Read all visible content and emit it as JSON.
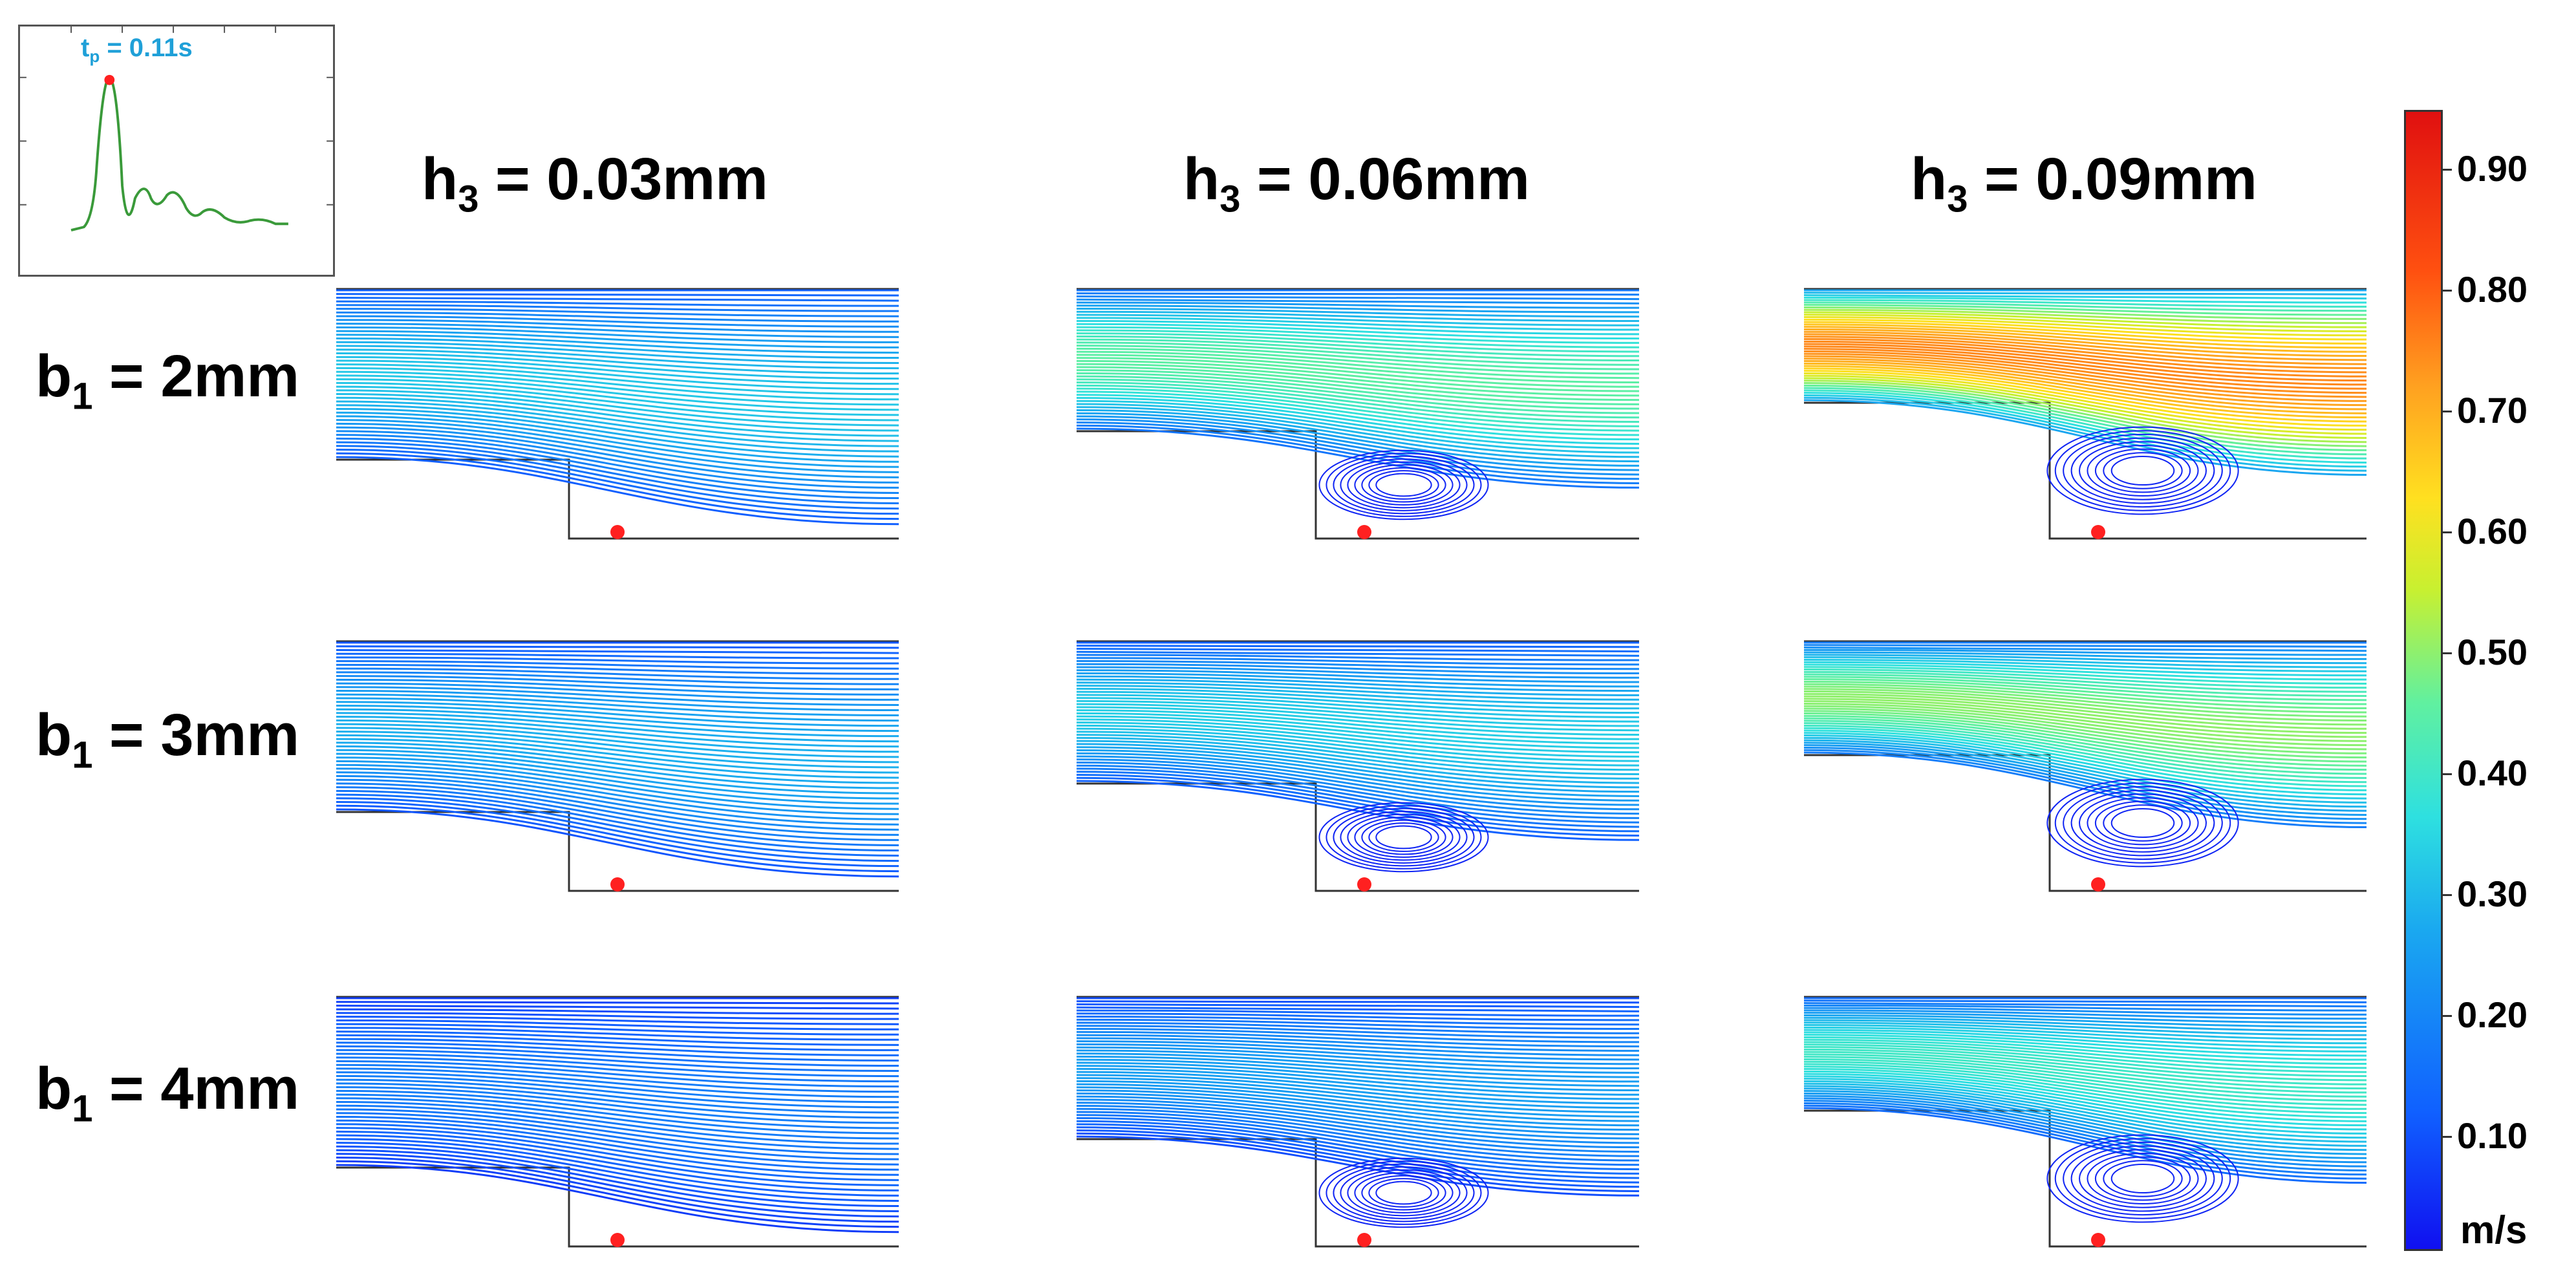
{
  "inset": {
    "peak_label_t": "t",
    "peak_label_sub": "p",
    "peak_label_value": " = 0.11s",
    "curve_color": "#3a9a3a",
    "marker_color": "#ff2020"
  },
  "columns": [
    {
      "label": "h",
      "sub": "3",
      "value": " = 0.03mm"
    },
    {
      "label": "h",
      "sub": "3",
      "value": " = 0.06mm"
    },
    {
      "label": "h",
      "sub": "3",
      "value": " = 0.09mm"
    }
  ],
  "rows": [
    {
      "label": "b",
      "sub": "1",
      "value": " = 2mm"
    },
    {
      "label": "b",
      "sub": "1",
      "value": " = 3mm"
    },
    {
      "label": "b",
      "sub": "1",
      "value": " = 4mm"
    }
  ],
  "colorbar": {
    "ticks": [
      "0.90",
      "0.80",
      "0.70",
      "0.60",
      "0.50",
      "0.40",
      "0.30",
      "0.20",
      "0.10"
    ],
    "unit": "m/s",
    "min": 0.0,
    "max": 0.95
  },
  "panels": [
    {
      "row": 0,
      "col": 0,
      "peak_velocity": 0.32,
      "step_depth": 0.2,
      "vortex": false
    },
    {
      "row": 0,
      "col": 1,
      "peak_velocity": 0.45,
      "step_depth": 0.4,
      "vortex": true
    },
    {
      "row": 0,
      "col": 2,
      "peak_velocity": 0.75,
      "step_depth": 0.6,
      "vortex": true
    },
    {
      "row": 1,
      "col": 0,
      "peak_velocity": 0.28,
      "step_depth": 0.2,
      "vortex": false
    },
    {
      "row": 1,
      "col": 1,
      "peak_velocity": 0.33,
      "step_depth": 0.4,
      "vortex": true
    },
    {
      "row": 1,
      "col": 2,
      "peak_velocity": 0.5,
      "step_depth": 0.6,
      "vortex": true
    },
    {
      "row": 2,
      "col": 0,
      "peak_velocity": 0.18,
      "step_depth": 0.2,
      "vortex": false
    },
    {
      "row": 2,
      "col": 1,
      "peak_velocity": 0.25,
      "step_depth": 0.4,
      "vortex": true
    },
    {
      "row": 2,
      "col": 2,
      "peak_velocity": 0.4,
      "step_depth": 0.6,
      "vortex": true
    }
  ]
}
